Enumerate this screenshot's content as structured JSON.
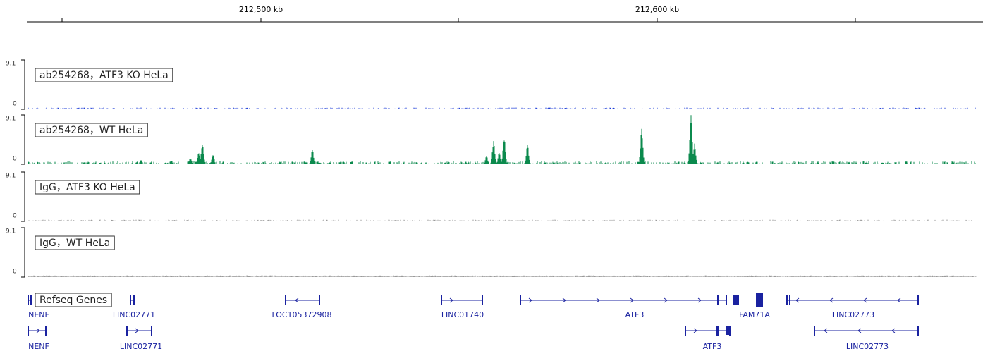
{
  "ruler": {
    "labels": [
      "212,500 kb",
      "212,600 kb"
    ]
  },
  "tracks": [
    {
      "name": "ab254268，ATF3 KO HeLa",
      "max": 9.1,
      "min": 0
    },
    {
      "name": "ab254268，WT HeLa",
      "max": 9.1,
      "min": 0
    },
    {
      "name": "IgG，ATF3 KO HeLa",
      "max": 9.1,
      "min": 0
    },
    {
      "name": "IgG，WT HeLa",
      "max": 9.1,
      "min": 0
    }
  ],
  "genes": {
    "title": "Refseq Genes",
    "row1": [
      "NENF",
      "LINC02771",
      "LOC105372908",
      "LINC01740",
      "ATF3",
      "FAM71A",
      "LINC02773"
    ],
    "row2": [
      "NENF",
      "LINC02771",
      "ATF3",
      "LINC02773"
    ]
  }
}
